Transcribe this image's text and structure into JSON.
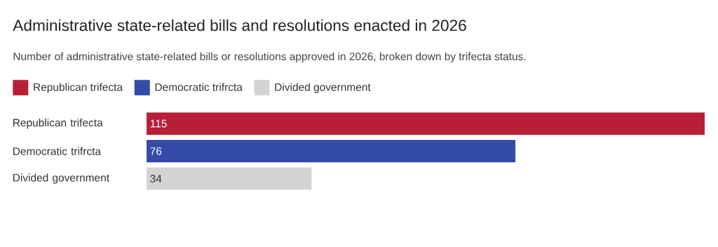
{
  "chart_data": {
    "type": "bar",
    "orientation": "horizontal",
    "title": "Administrative state-related bills and resolutions enacted in 2026",
    "subtitle": "Number of administrative state-related bills or resolutions approved in 2026, broken down by trifecta status.",
    "categories": [
      "Republican trifecta",
      "Democratic trifrcta",
      "Divided government"
    ],
    "series": [
      {
        "name": "Republican trifecta",
        "color": "#b71f38",
        "values": [
          115,
          null,
          null
        ]
      },
      {
        "name": "Democratic trifrcta",
        "color": "#344ca8",
        "values": [
          null,
          76,
          null
        ]
      },
      {
        "name": "Divided government",
        "color": "#d3d3d3",
        "values": [
          null,
          null,
          34
        ]
      }
    ],
    "data_labels": true,
    "legend": "top left"
  }
}
